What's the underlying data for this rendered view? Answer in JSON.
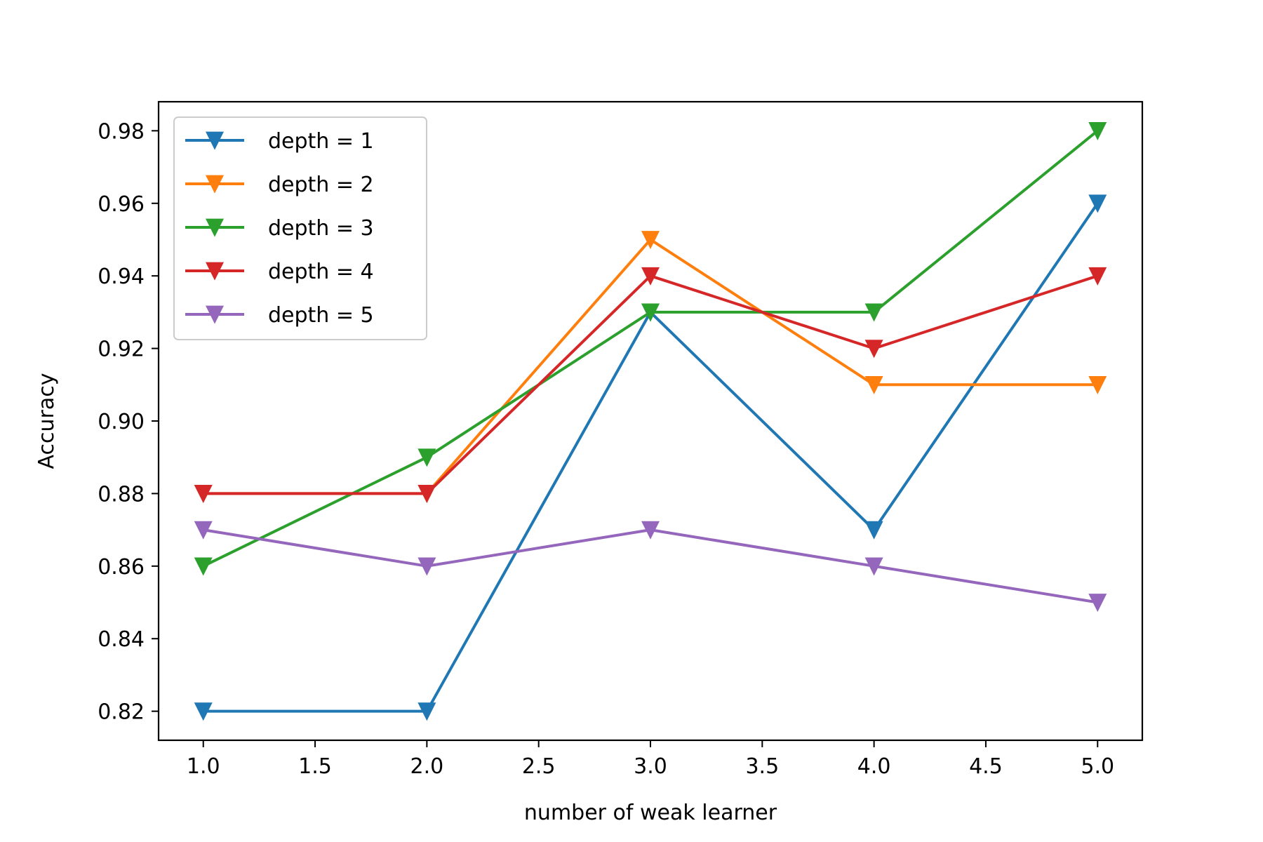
{
  "chart_data": {
    "type": "line",
    "xlabel": "number of weak learner",
    "ylabel": "Accuracy",
    "x": [
      1,
      2,
      3,
      4,
      5
    ],
    "xlim": [
      0.8,
      5.2
    ],
    "ylim": [
      0.812,
      0.988
    ],
    "xticks": [
      1.0,
      1.5,
      2.0,
      2.5,
      3.0,
      3.5,
      4.0,
      4.5,
      5.0
    ],
    "xtick_labels": [
      "1.0",
      "1.5",
      "2.0",
      "2.5",
      "3.0",
      "3.5",
      "4.0",
      "4.5",
      "5.0"
    ],
    "yticks": [
      0.82,
      0.84,
      0.86,
      0.88,
      0.9,
      0.92,
      0.94,
      0.96,
      0.98
    ],
    "ytick_labels": [
      "0.82",
      "0.84",
      "0.86",
      "0.88",
      "0.90",
      "0.92",
      "0.94",
      "0.96",
      "0.98"
    ],
    "grid": false,
    "legend_position": "top-left",
    "marker": "triangle-down",
    "series": [
      {
        "name": "depth = 1",
        "color": "#1f77b4",
        "values": [
          0.82,
          0.82,
          0.93,
          0.87,
          0.96
        ]
      },
      {
        "name": "depth = 2",
        "color": "#ff7f0e",
        "values": [
          0.88,
          0.88,
          0.95,
          0.91,
          0.91
        ]
      },
      {
        "name": "depth = 3",
        "color": "#2ca02c",
        "values": [
          0.86,
          0.89,
          0.93,
          0.93,
          0.98
        ]
      },
      {
        "name": "depth = 4",
        "color": "#d62728",
        "values": [
          0.88,
          0.88,
          0.94,
          0.92,
          0.94
        ]
      },
      {
        "name": "depth = 5",
        "color": "#9467bd",
        "values": [
          0.87,
          0.86,
          0.87,
          0.86,
          0.85
        ]
      }
    ]
  }
}
